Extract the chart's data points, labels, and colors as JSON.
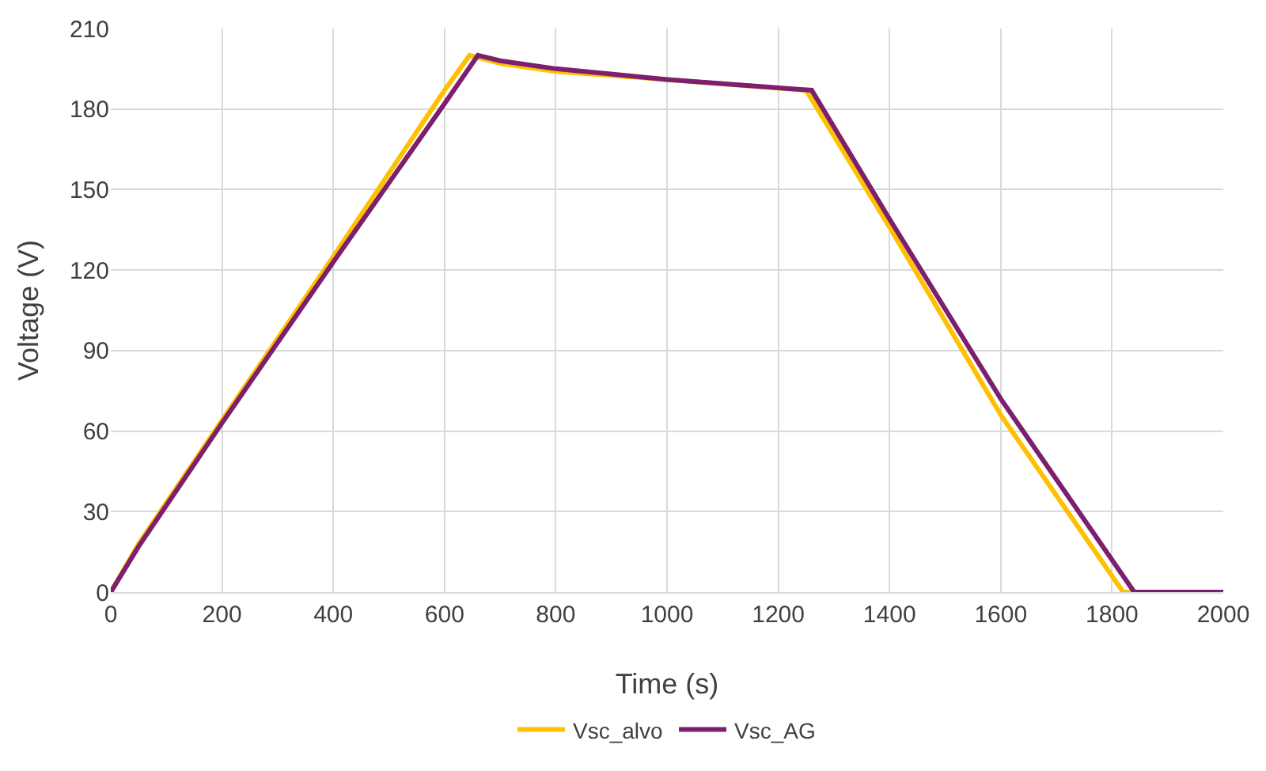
{
  "chart_data": {
    "type": "line",
    "xlabel": "Time (s)",
    "ylabel": "Voltage (V)",
    "xlim": [
      0,
      2000
    ],
    "xticks": [
      0,
      200,
      400,
      600,
      800,
      1000,
      1200,
      1400,
      1600,
      1800,
      2000
    ],
    "ylim": [
      0,
      210
    ],
    "yticks": [
      0,
      30,
      60,
      90,
      120,
      150,
      180,
      210
    ],
    "grid": true,
    "legend": "bottom",
    "marker": "none",
    "line_style": "solid",
    "series": [
      {
        "name": "Vsc_alvo",
        "color": "#ffc000",
        "x": [
          0,
          50,
          200,
          400,
          600,
          645,
          700,
          800,
          1000,
          1250,
          1400,
          1600,
          1820,
          1850,
          2000
        ],
        "values": [
          0,
          18,
          64,
          125,
          187,
          200,
          197,
          194,
          191,
          187,
          136,
          66,
          0,
          0,
          0
        ]
      },
      {
        "name": "Vsc_AG",
        "color": "#7b1f6e",
        "x": [
          0,
          50,
          200,
          400,
          600,
          660,
          700,
          800,
          1000,
          1260,
          1400,
          1600,
          1840,
          1850,
          2000
        ],
        "values": [
          0,
          17,
          63,
          123,
          182,
          200,
          198,
          195,
          191,
          187,
          139,
          72,
          0,
          0,
          0
        ]
      }
    ]
  }
}
